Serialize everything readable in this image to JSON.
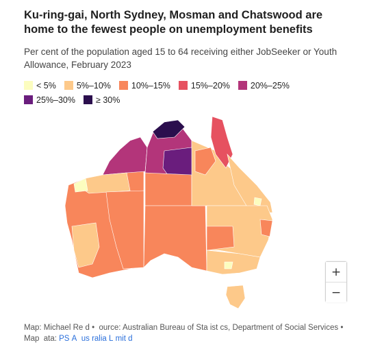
{
  "title": "Ku-ring-gai, North Sydney, Mosman and Chatswood are home to the fewest people on unemployment benefits",
  "subtitle": "Per cent of the population aged 15 to 64 receiving either JobSeeker or Youth Allowance, February 2023",
  "legend": [
    {
      "label": "< 5%",
      "color": "#fcfdbf"
    },
    {
      "label": "5%–10%",
      "color": "#fdc98a"
    },
    {
      "label": "10%–15%",
      "color": "#f8865b"
    },
    {
      "label": "15%–20%",
      "color": "#e65160"
    },
    {
      "label": "20%–25%",
      "color": "#b3357a"
    },
    {
      "label": "25%–30%",
      "color": "#6a1d7d"
    },
    {
      "label": "≥ 30%",
      "color": "#2b0e4d"
    }
  ],
  "zoom": {
    "in_label": "+",
    "out_label": "−"
  },
  "credits": {
    "text": "Map: Michael Re d •  ource: Australian Bureau of Sta ist cs, Department of Social Services • Map  ata: ",
    "link": "PS A  us ralia L mit d"
  }
}
